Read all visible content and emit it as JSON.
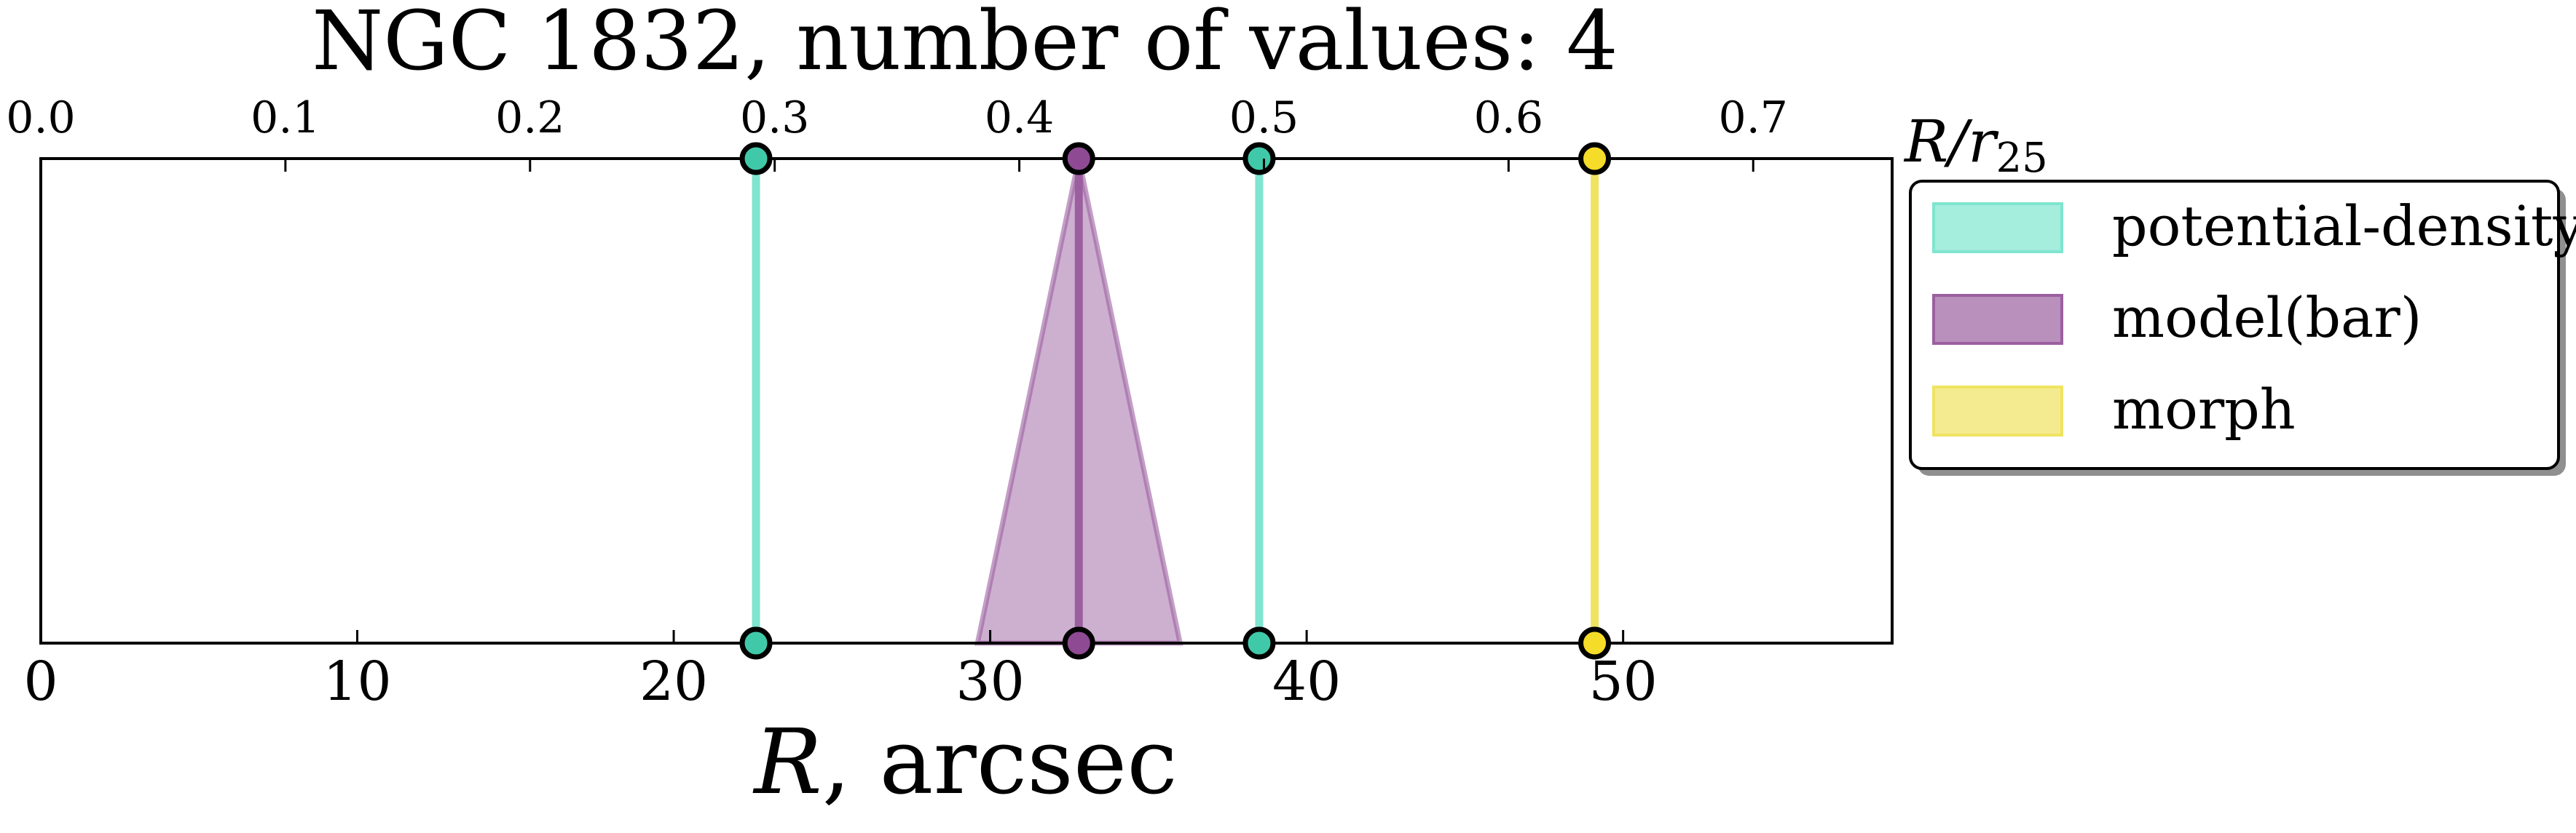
{
  "chart_data": {
    "type": "line",
    "title": "NGC 1832, number of values: 4",
    "xlabel": "R, arcsec",
    "x2label": "R/r25",
    "xlim": [
      0,
      58.5
    ],
    "xticks": [
      0,
      10,
      20,
      30,
      40,
      50
    ],
    "xticklabels": [
      "0",
      "10",
      "20",
      "30",
      "40",
      "50"
    ],
    "x2_scale_arcsec_per_unit": 77.3,
    "x2ticks": [
      0.0,
      0.1,
      0.2,
      0.3,
      0.4,
      0.5,
      0.6,
      0.7
    ],
    "x2ticklabels": [
      "0.0",
      "0.1",
      "0.2",
      "0.3",
      "0.4",
      "0.5",
      "0.6",
      "0.7"
    ],
    "legend_position": "outside right, top",
    "grid": false,
    "series": [
      {
        "name": "potential-density",
        "color": "#7fe5cf",
        "marker_color": "#40c9a8",
        "values": [
          22.6,
          38.5
        ],
        "widths": [
          0,
          0
        ]
      },
      {
        "name": "model(bar)",
        "color": "#9b5fa0",
        "marker_color": "#8e4a93",
        "values": [
          32.8
        ],
        "widths": [
          3.2
        ]
      },
      {
        "name": "morph",
        "color": "#f0e361",
        "marker_color": "#f5dc28",
        "values": [
          49.1
        ],
        "widths": [
          0
        ]
      }
    ]
  }
}
